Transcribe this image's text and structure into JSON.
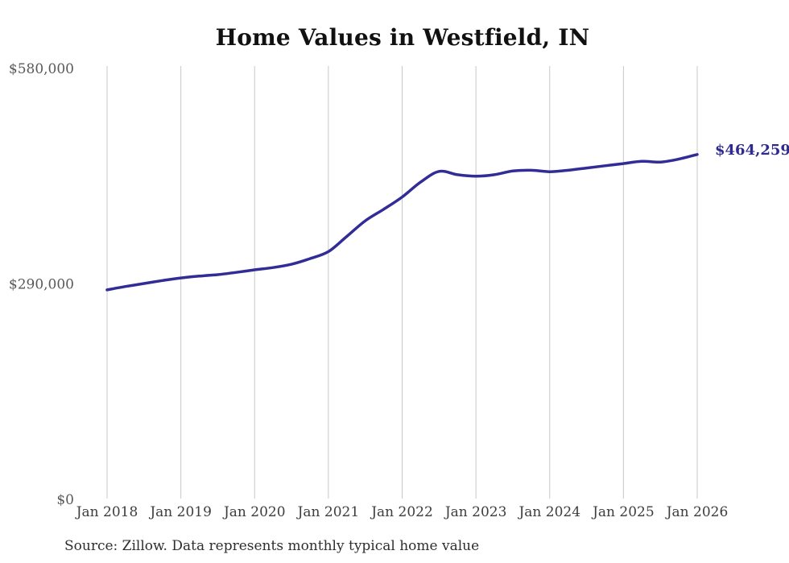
{
  "title": "Home Values in Westfield, IN",
  "source_note": "Source: Zillow. Data represents monthly typical home value",
  "colors": {
    "line": "#322c96",
    "end_label": "#2e2a8f",
    "grid": "#c8c8c8",
    "y_tick_text": "#595959",
    "x_tick_text": "#3d3d3d",
    "title_text": "#111111",
    "source_text": "#2e2e2e",
    "background": "#ffffff"
  },
  "chart_data": {
    "type": "line",
    "title": "Home Values in Westfield, IN",
    "xlabel": "",
    "ylabel": "",
    "grid": "vertical-only",
    "legend": "none",
    "ylim": [
      0,
      580000
    ],
    "y_ticks": [
      {
        "value": 0,
        "label": "$0"
      },
      {
        "value": 290000,
        "label": "$290,000"
      },
      {
        "value": 580000,
        "label": "$580,000"
      }
    ],
    "x_tick_labels": [
      "Jan 2018",
      "Jan 2019",
      "Jan 2020",
      "Jan 2021",
      "Jan 2022",
      "Jan 2023",
      "Jan 2024",
      "Jan 2025",
      "Jan 2026"
    ],
    "x_range_months": [
      "2018-01",
      "2026-01"
    ],
    "end_label": "$464,259",
    "final_value": 464259,
    "series": [
      {
        "name": "Monthly typical home value",
        "points": [
          [
            "2018-01",
            282000
          ],
          [
            "2018-04",
            286500
          ],
          [
            "2018-07",
            290500
          ],
          [
            "2018-10",
            294500
          ],
          [
            "2019-01",
            298000
          ],
          [
            "2019-04",
            300500
          ],
          [
            "2019-07",
            302500
          ],
          [
            "2019-10",
            305500
          ],
          [
            "2020-01",
            309000
          ],
          [
            "2020-04",
            312000
          ],
          [
            "2020-07",
            316500
          ],
          [
            "2020-10",
            324000
          ],
          [
            "2021-01",
            333500
          ],
          [
            "2021-04",
            354000
          ],
          [
            "2021-07",
            375000
          ],
          [
            "2021-10",
            390500
          ],
          [
            "2022-01",
            407000
          ],
          [
            "2022-04",
            427000
          ],
          [
            "2022-07",
            441500
          ],
          [
            "2022-10",
            437000
          ],
          [
            "2023-01",
            435000
          ],
          [
            "2023-04",
            437000
          ],
          [
            "2023-07",
            442000
          ],
          [
            "2023-10",
            443000
          ],
          [
            "2024-01",
            441000
          ],
          [
            "2024-04",
            443000
          ],
          [
            "2024-07",
            446000
          ],
          [
            "2024-10",
            449000
          ],
          [
            "2025-01",
            452000
          ],
          [
            "2025-04",
            455000
          ],
          [
            "2025-07",
            454000
          ],
          [
            "2025-10",
            458000
          ],
          [
            "2026-01",
            464259
          ]
        ]
      }
    ]
  }
}
